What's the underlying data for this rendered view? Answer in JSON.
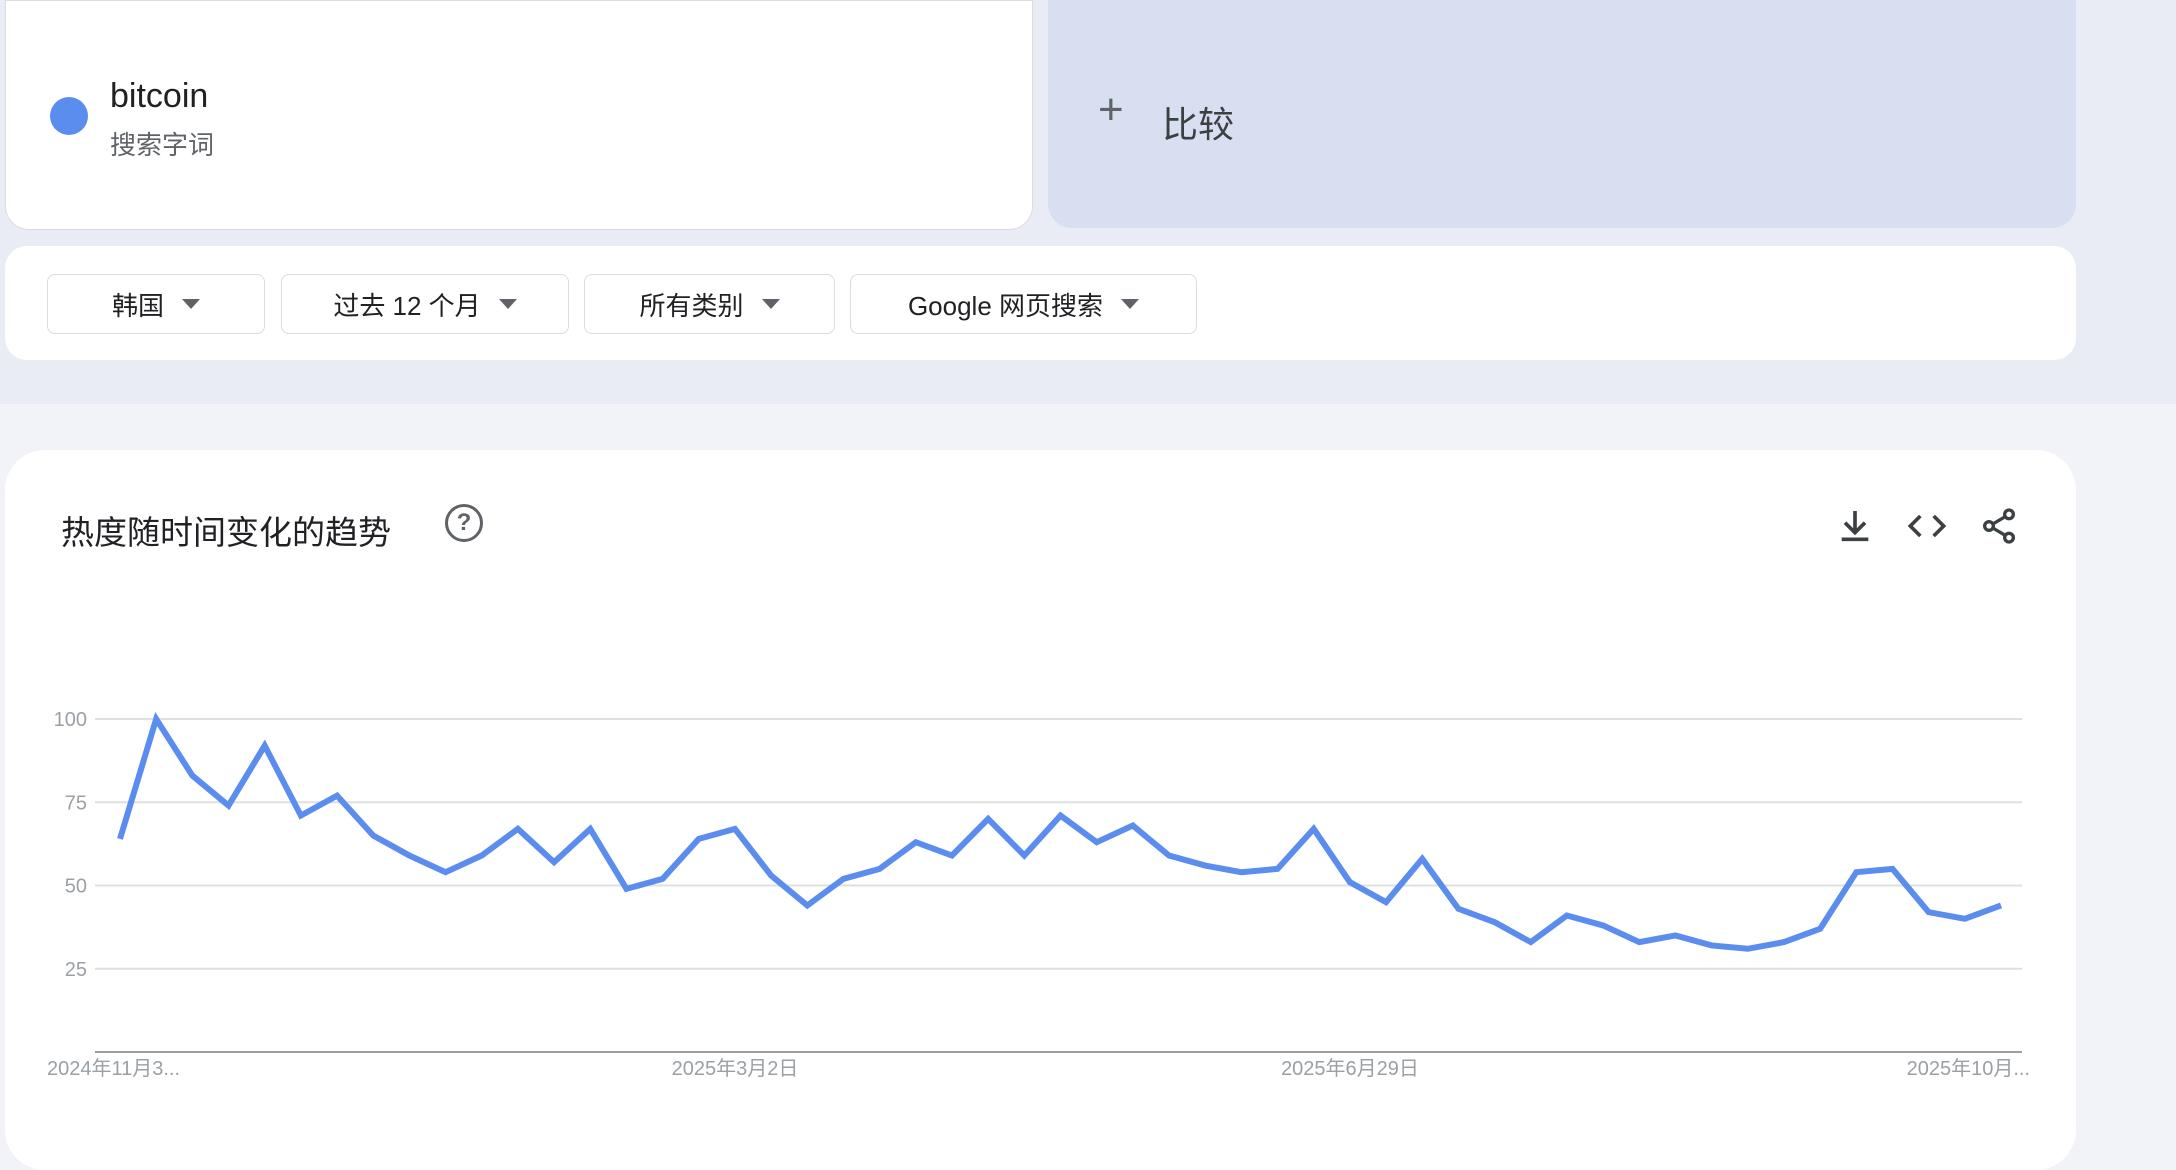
{
  "term": {
    "name": "bitcoin",
    "subtitle": "搜索字词",
    "color": "#5b8def"
  },
  "compare": {
    "label": "比较"
  },
  "filters": [
    {
      "label": "韩国"
    },
    {
      "label": "过去 12 个月"
    },
    {
      "label": "所有类别"
    },
    {
      "label": "Google 网页搜索"
    }
  ],
  "chart_section": {
    "title": "热度随时间变化的趋势",
    "icons": [
      "help-icon",
      "download-icon",
      "embed-code-icon",
      "share-icon"
    ]
  },
  "chart_data": {
    "type": "line",
    "ylim": [
      0,
      100
    ],
    "yticks": [
      "100",
      "75",
      "50",
      "25"
    ],
    "xtick_labels": [
      "2024年11月3...",
      "2025年3月2日",
      "2025年6月29日",
      "2025年10月..."
    ],
    "grid": true,
    "color": "#5b8def",
    "series": [
      {
        "values": [
          64,
          100,
          83,
          74,
          92,
          71,
          77,
          65,
          59,
          54,
          59,
          67,
          57,
          67,
          49,
          52,
          64,
          67,
          53,
          44,
          52,
          55,
          63,
          59,
          70,
          59,
          71,
          63,
          68,
          59,
          56,
          54,
          55,
          67,
          51,
          45,
          58,
          43,
          39,
          33,
          41,
          38,
          33,
          35,
          32,
          31,
          33,
          37,
          54,
          55,
          42,
          40,
          44
        ]
      }
    ]
  }
}
